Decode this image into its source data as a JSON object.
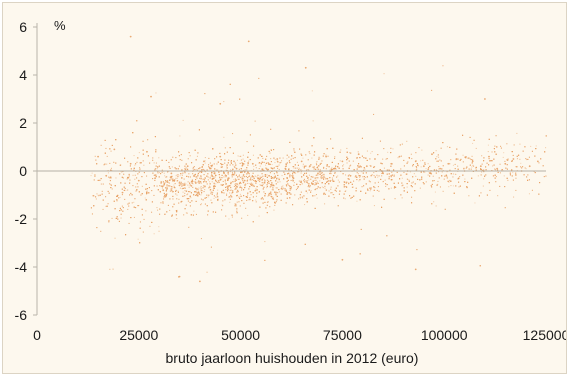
{
  "chart_data": {
    "type": "scatter",
    "title": "",
    "xlabel": "bruto jaarloon huishouden in 2012 (euro)",
    "ylabel": "%",
    "xlim": [
      0,
      125000
    ],
    "ylim": [
      -6,
      6
    ],
    "x_ticks": [
      "0",
      "25000",
      "50000",
      "75000",
      "100000",
      "125000"
    ],
    "y_ticks": [
      "6",
      "4",
      "2",
      "0",
      "-2",
      "-4",
      "-6"
    ],
    "grid": false,
    "legend": "none",
    "reference_line_y": 0,
    "colors": {
      "points": "#e8a266",
      "background": "#fdf8ee",
      "axis": "#b9b4aa",
      "zero_line": "#b5b0a6"
    },
    "series": [
      {
        "values_description_points": [
          [
            15000,
            0.6
          ],
          [
            17000,
            -0.2
          ],
          [
            19000,
            0.9
          ],
          [
            21000,
            -0.9
          ],
          [
            23000,
            0.3
          ],
          [
            25000,
            -0.4
          ],
          [
            27000,
            0.8
          ],
          [
            29000,
            -0.3
          ],
          [
            31000,
            -0.8
          ],
          [
            33000,
            -0.1
          ],
          [
            35000,
            -0.6
          ],
          [
            37000,
            0.2
          ],
          [
            39000,
            -0.5
          ],
          [
            41000,
            0.4
          ],
          [
            43000,
            -0.2
          ],
          [
            45000,
            0.6
          ],
          [
            47000,
            -0.3
          ],
          [
            49000,
            0.1
          ],
          [
            51000,
            -0.4
          ],
          [
            53000,
            0.3
          ],
          [
            55000,
            0.0
          ],
          [
            57000,
            -0.2
          ],
          [
            59000,
            0.5
          ],
          [
            61000,
            0.1
          ],
          [
            63000,
            -0.3
          ],
          [
            65000,
            0.4
          ],
          [
            67000,
            0.2
          ],
          [
            69000,
            -0.1
          ],
          [
            71000,
            0.6
          ],
          [
            73000,
            0.1
          ],
          [
            75000,
            0.4
          ],
          [
            77000,
            -0.2
          ],
          [
            79000,
            0.7
          ],
          [
            81000,
            0.2
          ],
          [
            83000,
            0.5
          ],
          [
            85000,
            -0.1
          ],
          [
            87000,
            0.3
          ],
          [
            89000,
            0.6
          ],
          [
            91000,
            0.0
          ],
          [
            93000,
            0.4
          ],
          [
            95000,
            0.2
          ],
          [
            97000,
            0.7
          ],
          [
            99000,
            0.1
          ],
          [
            101000,
            0.3
          ],
          [
            103000,
            0.5
          ],
          [
            105000,
            0.0
          ],
          [
            107000,
            0.4
          ],
          [
            109000,
            0.2
          ],
          [
            111000,
            0.6
          ],
          [
            113000,
            0.1
          ],
          [
            115000,
            0.3
          ],
          [
            117000,
            0.5
          ],
          [
            119000,
            0.0
          ],
          [
            121000,
            0.2
          ],
          [
            123000,
            0.4
          ],
          [
            35000,
            -4.4
          ],
          [
            40000,
            -4.6
          ],
          [
            28000,
            3.1
          ],
          [
            66000,
            4.3
          ],
          [
            110000,
            3.0
          ],
          [
            23000,
            5.6
          ],
          [
            52000,
            5.4
          ],
          [
            93000,
            -4.1
          ],
          [
            75000,
            -3.7
          ],
          [
            45000,
            2.8
          ]
        ]
      }
    ]
  }
}
